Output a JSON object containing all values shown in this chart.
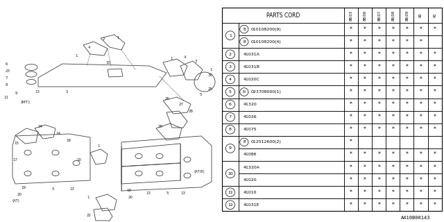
{
  "title": "A410B00143",
  "table_header": "PARTS CORD",
  "col_headers": [
    "88/03",
    "88/06",
    "88/07",
    "88/08",
    "88/09",
    "90",
    "91"
  ],
  "rows": [
    {
      "num": "1",
      "prefix": "B",
      "code": "010108200(9)",
      "stars": [
        1,
        1,
        1,
        1,
        1,
        1,
        1
      ]
    },
    {
      "num": "1",
      "prefix": "B",
      "code": "010108200(4)",
      "stars": [
        1,
        1,
        1,
        1,
        1,
        1,
        0
      ]
    },
    {
      "num": "2",
      "prefix": "",
      "code": "41031A",
      "stars": [
        1,
        1,
        1,
        1,
        1,
        1,
        1
      ]
    },
    {
      "num": "3",
      "prefix": "",
      "code": "41031B",
      "stars": [
        1,
        1,
        1,
        1,
        1,
        1,
        1
      ]
    },
    {
      "num": "4",
      "prefix": "",
      "code": "41020C",
      "stars": [
        1,
        1,
        1,
        1,
        1,
        1,
        1
      ]
    },
    {
      "num": "5",
      "prefix": "N",
      "code": "023708000(1)",
      "stars": [
        1,
        1,
        1,
        1,
        1,
        1,
        1
      ]
    },
    {
      "num": "6",
      "prefix": "",
      "code": "41320",
      "stars": [
        1,
        1,
        1,
        1,
        1,
        1,
        1
      ]
    },
    {
      "num": "7",
      "prefix": "",
      "code": "41026",
      "stars": [
        1,
        1,
        1,
        1,
        1,
        1,
        1
      ]
    },
    {
      "num": "8",
      "prefix": "",
      "code": "41075",
      "stars": [
        1,
        1,
        1,
        1,
        1,
        1,
        1
      ]
    },
    {
      "num": "9",
      "prefix": "B",
      "code": "012512600(2)",
      "stars": [
        1,
        0,
        0,
        0,
        0,
        0,
        0
      ]
    },
    {
      "num": "9",
      "prefix": "",
      "code": "41086",
      "stars": [
        1,
        1,
        1,
        1,
        1,
        1,
        1
      ]
    },
    {
      "num": "10",
      "prefix": "",
      "code": "41320A",
      "stars": [
        1,
        1,
        1,
        1,
        1,
        1,
        1
      ]
    },
    {
      "num": "10",
      "prefix": "",
      "code": "41020",
      "stars": [
        1,
        1,
        1,
        1,
        1,
        1,
        1
      ]
    },
    {
      "num": "11",
      "prefix": "",
      "code": "41010",
      "stars": [
        1,
        1,
        1,
        1,
        1,
        1,
        1
      ]
    },
    {
      "num": "12",
      "prefix": "",
      "code": "41031E",
      "stars": [
        1,
        1,
        1,
        1,
        1,
        1,
        1
      ]
    }
  ],
  "bg_color": "#ffffff"
}
